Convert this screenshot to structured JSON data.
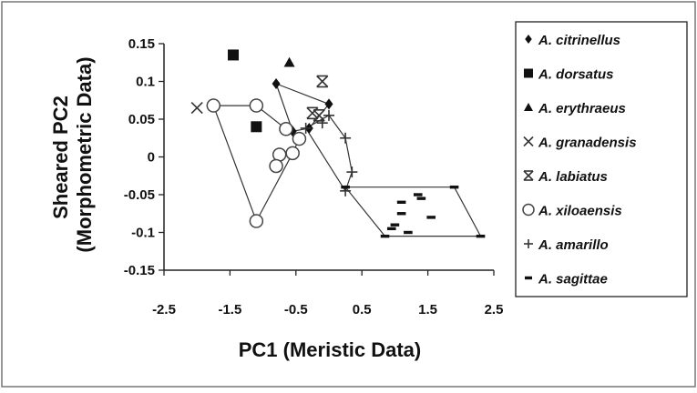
{
  "chart_data": {
    "type": "scatter",
    "title": "",
    "xlabel": "PC1 (Meristic Data)",
    "ylabel_lines": [
      "Sheared PC2",
      "(Morphometric Data)"
    ],
    "xlim": [
      -2.5,
      2.5
    ],
    "ylim": [
      -0.15,
      0.15
    ],
    "xticks": [
      "-2.5",
      "-1.5",
      "-0.5",
      "0.5",
      "1.5",
      "2.5"
    ],
    "yticks": [
      "0.15",
      "0.1",
      "0.05",
      "0",
      "-0.05",
      "-0.1",
      "-0.15"
    ],
    "grid": false,
    "legend_position": "right",
    "series": [
      {
        "name": "A. citrinellus",
        "marker": "diamond",
        "points": [
          [
            -0.8,
            0.097
          ],
          [
            -0.55,
            0.034
          ],
          [
            0.0,
            0.07
          ],
          [
            -0.3,
            0.038
          ]
        ],
        "hull": [
          [
            -0.8,
            0.097
          ],
          [
            0.0,
            0.07
          ],
          [
            -0.3,
            0.038
          ],
          [
            -0.55,
            0.034
          ]
        ]
      },
      {
        "name": "A. dorsatus",
        "marker": "square",
        "points": [
          [
            -1.45,
            0.135
          ],
          [
            -1.1,
            0.04
          ]
        ]
      },
      {
        "name": "A. erythraeus",
        "marker": "triangle",
        "points": [
          [
            -0.6,
            0.125
          ]
        ]
      },
      {
        "name": "A. granadensis",
        "marker": "x",
        "points": [
          [
            -2.0,
            0.065
          ]
        ]
      },
      {
        "name": "A. labiatus",
        "marker": "asterisk",
        "points": [
          [
            -0.1,
            0.1
          ],
          [
            -0.25,
            0.058
          ],
          [
            -0.15,
            0.055
          ]
        ]
      },
      {
        "name": "A. xiloaensis",
        "marker": "circle",
        "points": [
          [
            -1.75,
            0.068
          ],
          [
            -1.1,
            0.068
          ],
          [
            -1.1,
            -0.085
          ],
          [
            -0.65,
            0.037
          ],
          [
            -0.55,
            0.005
          ],
          [
            -0.75,
            0.003
          ],
          [
            -0.8,
            -0.012
          ],
          [
            -0.45,
            0.024
          ]
        ],
        "hull": [
          [
            -1.75,
            0.068
          ],
          [
            -1.1,
            0.068
          ],
          [
            -0.65,
            0.037
          ],
          [
            -0.45,
            0.024
          ],
          [
            -0.55,
            0.005
          ],
          [
            -1.1,
            -0.085
          ]
        ]
      },
      {
        "name": "A. amarillo",
        "marker": "plus",
        "points": [
          [
            -0.35,
            0.038
          ],
          [
            0.0,
            0.055
          ],
          [
            0.25,
            0.025
          ],
          [
            0.35,
            -0.02
          ],
          [
            0.25,
            -0.045
          ],
          [
            -0.1,
            0.045
          ]
        ],
        "hull": [
          [
            -0.35,
            0.038
          ],
          [
            0.0,
            0.055
          ],
          [
            0.25,
            0.025
          ],
          [
            0.35,
            -0.02
          ],
          [
            0.25,
            -0.045
          ]
        ]
      },
      {
        "name": "A. sagittae",
        "marker": "dash",
        "points": [
          [
            0.25,
            -0.04
          ],
          [
            1.9,
            -0.04
          ],
          [
            2.3,
            -0.105
          ],
          [
            0.85,
            -0.105
          ],
          [
            1.1,
            -0.06
          ],
          [
            1.35,
            -0.05
          ],
          [
            1.4,
            -0.055
          ],
          [
            1.1,
            -0.075
          ],
          [
            1.55,
            -0.08
          ],
          [
            1.0,
            -0.09
          ],
          [
            0.95,
            -0.095
          ],
          [
            1.2,
            -0.1
          ]
        ],
        "hull": [
          [
            0.25,
            -0.04
          ],
          [
            1.9,
            -0.04
          ],
          [
            2.3,
            -0.105
          ],
          [
            0.85,
            -0.105
          ]
        ]
      }
    ]
  }
}
